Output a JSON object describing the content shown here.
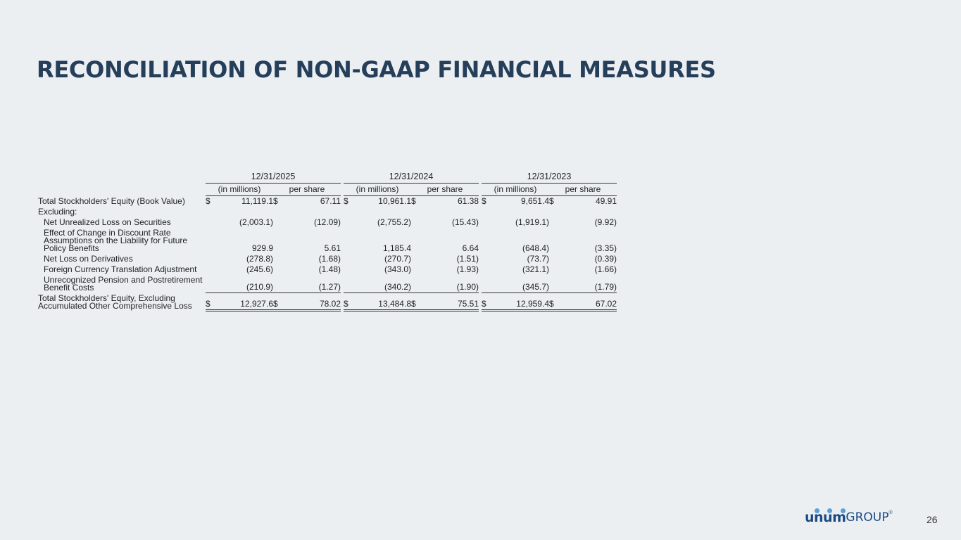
{
  "title": "RECONCILIATION OF NON-GAAP FINANCIAL MEASURES",
  "table": {
    "years": [
      "12/31/2025",
      "12/31/2024",
      "12/31/2023"
    ],
    "subheaders": [
      "(in millions)",
      "per share"
    ],
    "rows": [
      {
        "label": "Total Stockholders' Equity (Book Value)",
        "values": [
          "11,119.1",
          "67.11",
          "10,961.1",
          "61.38",
          "9,651.4",
          "49.91"
        ],
        "dollar": "$"
      },
      {
        "label": "Excluding:"
      },
      {
        "label": "Net Unrealized Loss on Securities",
        "values": [
          "(2,003.1)",
          "(12.09)",
          "(2,755.2)",
          "(15.43)",
          "(1,919.1)",
          "(9.92)"
        ]
      },
      {
        "label": "Effect of Change in Discount Rate Assumptions on the Liability for Future Policy Benefits",
        "values": [
          "929.9",
          "5.61",
          "1,185.4",
          "6.64",
          "(648.4)",
          "(3.35)"
        ]
      },
      {
        "label": "Net Loss on Derivatives",
        "values": [
          "(278.8)",
          "(1.68)",
          "(270.7)",
          "(1.51)",
          "(73.7)",
          "(0.39)"
        ]
      },
      {
        "label": "Foreign Currency Translation Adjustment",
        "values": [
          "(245.6)",
          "(1.48)",
          "(343.0)",
          "(1.93)",
          "(321.1)",
          "(1.66)"
        ]
      },
      {
        "label": "Unrecognized Pension and Postretirement Benefit Costs",
        "values": [
          "(210.9)",
          "(1.27)",
          "(340.2)",
          "(1.90)",
          "(345.7)",
          "(1.79)"
        ]
      },
      {
        "label": "Total Stockholders' Equity, Excluding Accumulated Other Comprehensive Loss",
        "values": [
          "12,927.6",
          "78.02",
          "13,484.8",
          "75.51",
          "12,959.4",
          "67.02"
        ],
        "dollar": "$"
      }
    ]
  },
  "logo": {
    "word": "unum",
    "group": "GROUP",
    "reg": "®"
  },
  "page_number": "26",
  "colors": {
    "title": "#253f5b",
    "background": "#eceff2",
    "logo": "#1b4a84",
    "logo_dots": "#5aa0d8"
  }
}
